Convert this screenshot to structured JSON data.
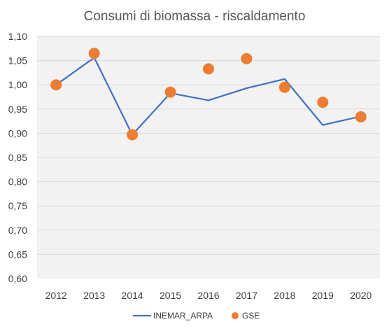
{
  "chart_data": {
    "type": "line",
    "title": "Consumi di biomassa - riscaldamento",
    "categories": [
      "2012",
      "2013",
      "2014",
      "2015",
      "2016",
      "2017",
      "2018",
      "2019",
      "2020"
    ],
    "ylim": [
      0.6,
      1.1
    ],
    "y_ticks": [
      "0,60",
      "0,65",
      "0,70",
      "0,75",
      "0,80",
      "0,85",
      "0,90",
      "0,95",
      "1,00",
      "1,05",
      "1,10"
    ],
    "y_tick_values": [
      0.6,
      0.65,
      0.7,
      0.75,
      0.8,
      0.85,
      0.9,
      0.95,
      1.0,
      1.05,
      1.1
    ],
    "grid": true,
    "legend_position": "bottom",
    "series": [
      {
        "name": "INEMAR_ARPA",
        "kind": "line",
        "color": "#4472C4",
        "values": [
          1.0,
          1.056,
          0.897,
          0.983,
          0.968,
          0.993,
          1.012,
          0.917,
          0.935
        ]
      },
      {
        "name": "GSE",
        "kind": "scatter",
        "color": "#ED7D31",
        "values": [
          1.0,
          1.065,
          0.897,
          0.985,
          1.033,
          1.054,
          0.995,
          0.964,
          0.934
        ]
      }
    ]
  }
}
